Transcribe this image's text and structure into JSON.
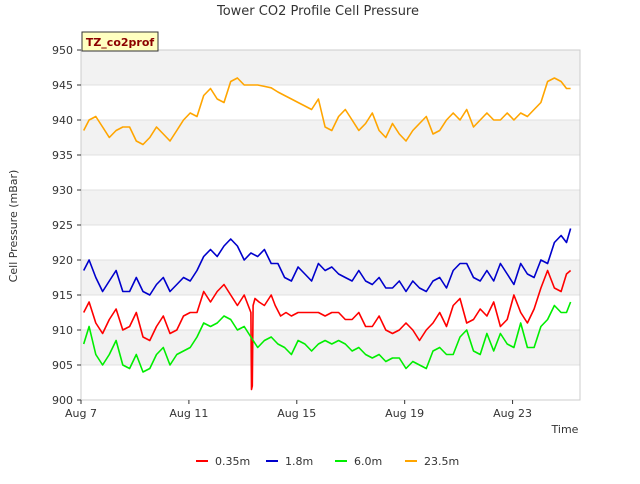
{
  "chart_data": {
    "type": "line",
    "title": "Tower CO2 Profile Cell Pressure",
    "xlabel": "Time",
    "ylabel": "Cell Pressure (mBar)",
    "site_label": "TZ_co2prof",
    "ylim": [
      900,
      950
    ],
    "xlim": [
      0,
      18.5
    ],
    "x_ticks": [
      {
        "x": 0,
        "label": "Aug 7"
      },
      {
        "x": 4,
        "label": "Aug 11"
      },
      {
        "x": 8,
        "label": "Aug 15"
      },
      {
        "x": 12,
        "label": "Aug 19"
      },
      {
        "x": 16,
        "label": "Aug 23"
      }
    ],
    "y_ticks": [
      900,
      905,
      910,
      915,
      920,
      925,
      930,
      935,
      940,
      945,
      950
    ],
    "grid": true,
    "legend_position": "bottom",
    "series": [
      {
        "name": "0.35m",
        "color": "#ff0000",
        "x": [
          0.1,
          0.3,
          0.55,
          0.8,
          1.05,
          1.3,
          1.55,
          1.8,
          2.05,
          2.3,
          2.55,
          2.8,
          3.05,
          3.3,
          3.55,
          3.8,
          4.05,
          4.3,
          4.55,
          4.8,
          5.05,
          5.3,
          5.55,
          5.8,
          6.05,
          6.3,
          6.32,
          6.35,
          6.38,
          6.45,
          6.6,
          6.8,
          7.05,
          7.2,
          7.4,
          7.6,
          7.8,
          8.05,
          8.3,
          8.55,
          8.8,
          9.05,
          9.3,
          9.55,
          9.8,
          10.05,
          10.3,
          10.55,
          10.8,
          11.05,
          11.3,
          11.55,
          11.8,
          12.05,
          12.3,
          12.55,
          12.8,
          13.05,
          13.3,
          13.55,
          13.8,
          14.05,
          14.3,
          14.55,
          14.8,
          15.05,
          15.3,
          15.55,
          15.8,
          16.05,
          16.3,
          16.55,
          16.8,
          17.05,
          17.3,
          17.55,
          17.8,
          18.0,
          18.15
        ],
        "y": [
          912.5,
          914,
          911,
          909.5,
          911.5,
          913,
          910,
          910.5,
          912.5,
          909,
          908.5,
          910.5,
          912,
          909.5,
          910,
          912,
          912.5,
          912.5,
          915.5,
          914,
          915.5,
          916.5,
          915,
          913.5,
          915,
          912.5,
          901.5,
          902,
          913.5,
          914.5,
          914,
          913.5,
          915,
          913.5,
          912,
          912.5,
          912,
          912.5,
          912.5,
          912.5,
          912.5,
          912,
          912.5,
          912.5,
          911.5,
          911.5,
          912.5,
          910.5,
          910.5,
          912,
          910,
          909.5,
          910,
          911,
          910,
          908.5,
          910,
          911,
          912.5,
          910.5,
          913.5,
          914.5,
          911,
          911.5,
          913,
          912,
          914,
          910.5,
          911.5,
          915,
          912.5,
          911,
          913,
          916,
          918.5,
          916,
          915.5,
          918,
          918.5
        ]
      },
      {
        "name": "1.8m",
        "color": "#0000cc",
        "x": [
          0.1,
          0.3,
          0.55,
          0.8,
          1.05,
          1.3,
          1.55,
          1.8,
          2.05,
          2.3,
          2.55,
          2.8,
          3.05,
          3.3,
          3.55,
          3.8,
          4.05,
          4.3,
          4.55,
          4.8,
          5.05,
          5.3,
          5.55,
          5.8,
          6.05,
          6.3,
          6.55,
          6.8,
          7.05,
          7.3,
          7.55,
          7.8,
          8.05,
          8.3,
          8.55,
          8.8,
          9.05,
          9.3,
          9.55,
          9.8,
          10.05,
          10.3,
          10.55,
          10.8,
          11.05,
          11.3,
          11.55,
          11.8,
          12.05,
          12.3,
          12.55,
          12.8,
          13.05,
          13.3,
          13.55,
          13.8,
          14.05,
          14.3,
          14.55,
          14.8,
          15.05,
          15.3,
          15.55,
          15.8,
          16.05,
          16.3,
          16.55,
          16.8,
          17.05,
          17.3,
          17.55,
          17.8,
          18.0,
          18.15
        ],
        "y": [
          918.5,
          920,
          917.5,
          915.5,
          917,
          918.5,
          915.5,
          915.5,
          917.5,
          915.5,
          915,
          916.5,
          917.5,
          915.5,
          916.5,
          917.5,
          917,
          918.5,
          920.5,
          921.5,
          920.5,
          922,
          923,
          922,
          920,
          921,
          920.5,
          921.5,
          919.5,
          919.5,
          917.5,
          917,
          919,
          918,
          917,
          919.5,
          918.5,
          919,
          918,
          917.5,
          917,
          918.5,
          917,
          916.5,
          917.5,
          916,
          916,
          917,
          915.5,
          917,
          916,
          915.5,
          917,
          917.5,
          916,
          918.5,
          919.5,
          919.5,
          917.5,
          917,
          918.5,
          917,
          919.5,
          918,
          916.5,
          919.5,
          918,
          917.5,
          920,
          919.5,
          922.5,
          923.5,
          922.5,
          924.5
        ]
      },
      {
        "name": "6.0m",
        "color": "#00ee00",
        "x": [
          0.1,
          0.3,
          0.55,
          0.8,
          1.05,
          1.3,
          1.55,
          1.8,
          2.05,
          2.3,
          2.55,
          2.8,
          3.05,
          3.3,
          3.55,
          3.8,
          4.05,
          4.3,
          4.55,
          4.8,
          5.05,
          5.3,
          5.55,
          5.8,
          6.05,
          6.3,
          6.55,
          6.8,
          7.05,
          7.3,
          7.55,
          7.8,
          8.05,
          8.3,
          8.55,
          8.8,
          9.05,
          9.3,
          9.55,
          9.8,
          10.05,
          10.3,
          10.55,
          10.8,
          11.05,
          11.3,
          11.55,
          11.8,
          12.05,
          12.3,
          12.55,
          12.8,
          13.05,
          13.3,
          13.55,
          13.8,
          14.05,
          14.3,
          14.55,
          14.8,
          15.05,
          15.3,
          15.55,
          15.8,
          16.05,
          16.3,
          16.55,
          16.8,
          17.05,
          17.3,
          17.55,
          17.8,
          18.0,
          18.15
        ],
        "y": [
          908,
          910.5,
          906.5,
          905,
          906.5,
          908.5,
          905,
          904.5,
          906.5,
          904,
          904.5,
          906.5,
          907.5,
          905,
          906.5,
          907,
          907.5,
          909,
          911,
          910.5,
          911,
          912,
          911.5,
          910,
          910.5,
          909,
          907.5,
          908.5,
          909,
          908,
          907.5,
          906.5,
          908.5,
          908,
          907,
          908,
          908.5,
          908,
          908.5,
          908,
          907,
          907.5,
          906.5,
          906,
          906.5,
          905.5,
          906,
          906,
          904.5,
          905.5,
          905,
          904.5,
          907,
          907.5,
          906.5,
          906.5,
          909,
          910,
          907,
          906.5,
          909.5,
          907,
          909.5,
          908,
          907.5,
          911,
          907.5,
          907.5,
          910.5,
          911.5,
          913.5,
          912.5,
          912.5,
          914
        ]
      },
      {
        "name": "23.5m",
        "color": "#ffa500",
        "x": [
          0.1,
          0.3,
          0.55,
          0.8,
          1.05,
          1.3,
          1.55,
          1.8,
          2.05,
          2.3,
          2.55,
          2.8,
          3.05,
          3.3,
          3.55,
          3.8,
          4.05,
          4.3,
          4.55,
          4.8,
          5.05,
          5.3,
          5.55,
          5.8,
          6.05,
          6.3,
          6.55,
          6.8,
          7.05,
          7.3,
          7.55,
          7.8,
          8.05,
          8.3,
          8.55,
          8.8,
          9.05,
          9.3,
          9.55,
          9.8,
          10.05,
          10.3,
          10.55,
          10.8,
          11.05,
          11.3,
          11.55,
          11.8,
          12.05,
          12.3,
          12.55,
          12.8,
          13.05,
          13.3,
          13.55,
          13.8,
          14.05,
          14.3,
          14.55,
          14.8,
          15.05,
          15.3,
          15.55,
          15.8,
          16.05,
          16.3,
          16.55,
          16.8,
          17.05,
          17.3,
          17.55,
          17.8,
          18.0,
          18.15
        ],
        "y": [
          938.5,
          940,
          940.5,
          939,
          937.5,
          938.5,
          939,
          939,
          937,
          936.5,
          937.5,
          939,
          938,
          937,
          938.5,
          940,
          941,
          940.5,
          943.5,
          944.5,
          943,
          942.5,
          945.5,
          946,
          945,
          945,
          945,
          944.8,
          944.6,
          944,
          943.5,
          943,
          942.5,
          942,
          941.5,
          943,
          939,
          938.5,
          940.5,
          941.5,
          940,
          938.5,
          939.5,
          941,
          938.5,
          937.5,
          939.5,
          938,
          937,
          938.5,
          939.5,
          940.5,
          938,
          938.5,
          940,
          941,
          940,
          941.5,
          939,
          940,
          941,
          940,
          940,
          941,
          940,
          941,
          940.5,
          941.5,
          942.5,
          945.5,
          946,
          945.5,
          944.5,
          944.5
        ]
      }
    ]
  }
}
